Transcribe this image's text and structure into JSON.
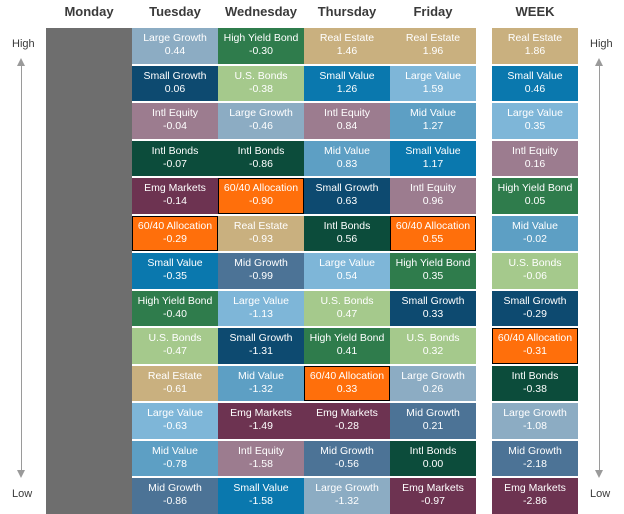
{
  "labels": {
    "high": "High",
    "low": "Low"
  },
  "colors": {
    "Large Growth": "#8cacc3",
    "Small Growth": "#0d4a70",
    "Intl Equity": "#9c7c8f",
    "Intl Bonds": "#0c4c3b",
    "Emg Markets": "#6d3351",
    "60/40 Allocation": "#ff6f0b",
    "Small Value": "#0a78ae",
    "High Yield Bond": "#2f7c4c",
    "U.S. Bonds": "#a5c98c",
    "Real Estate": "#c9b07f",
    "Large Value": "#7eb6d8",
    "Mid Value": "#5d9fc4",
    "Mid Growth": "#4c7396",
    "monday": "#6e6e6e",
    "outline": "#000000"
  },
  "chart_data": {
    "type": "table",
    "columns": [
      {
        "name": "Monday",
        "cells": []
      },
      {
        "name": "Tuesday",
        "cells": [
          {
            "asset": "Large Growth",
            "value": "0.44"
          },
          {
            "asset": "Small Growth",
            "value": "0.06"
          },
          {
            "asset": "Intl Equity",
            "value": "-0.04"
          },
          {
            "asset": "Intl Bonds",
            "value": "-0.07"
          },
          {
            "asset": "Emg Markets",
            "value": "-0.14"
          },
          {
            "asset": "60/40 Allocation",
            "value": "-0.29"
          },
          {
            "asset": "Small Value",
            "value": "-0.35"
          },
          {
            "asset": "High Yield Bond",
            "value": "-0.40"
          },
          {
            "asset": "U.S. Bonds",
            "value": "-0.47"
          },
          {
            "asset": "Real Estate",
            "value": "-0.61"
          },
          {
            "asset": "Large Value",
            "value": "-0.63"
          },
          {
            "asset": "Mid Value",
            "value": "-0.78"
          },
          {
            "asset": "Mid Growth",
            "value": "-0.86"
          }
        ]
      },
      {
        "name": "Wednesday",
        "cells": [
          {
            "asset": "High Yield Bond",
            "value": "-0.30"
          },
          {
            "asset": "U.S. Bonds",
            "value": "-0.38"
          },
          {
            "asset": "Large Growth",
            "value": "-0.46"
          },
          {
            "asset": "Intl Bonds",
            "value": "-0.86"
          },
          {
            "asset": "60/40 Allocation",
            "value": "-0.90"
          },
          {
            "asset": "Real Estate",
            "value": "-0.93"
          },
          {
            "asset": "Mid Growth",
            "value": "-0.99"
          },
          {
            "asset": "Large Value",
            "value": "-1.13"
          },
          {
            "asset": "Small Growth",
            "value": "-1.31"
          },
          {
            "asset": "Mid Value",
            "value": "-1.32"
          },
          {
            "asset": "Emg Markets",
            "value": "-1.49"
          },
          {
            "asset": "Intl Equity",
            "value": "-1.58"
          },
          {
            "asset": "Small Value",
            "value": "-1.58"
          }
        ]
      },
      {
        "name": "Thursday",
        "cells": [
          {
            "asset": "Real Estate",
            "value": "1.46"
          },
          {
            "asset": "Small Value",
            "value": "1.26"
          },
          {
            "asset": "Intl Equity",
            "value": "0.84"
          },
          {
            "asset": "Mid Value",
            "value": "0.83"
          },
          {
            "asset": "Small Growth",
            "value": "0.63"
          },
          {
            "asset": "Intl Bonds",
            "value": "0.56"
          },
          {
            "asset": "Large Value",
            "value": "0.54"
          },
          {
            "asset": "U.S. Bonds",
            "value": "0.47"
          },
          {
            "asset": "High Yield Bond",
            "value": "0.41"
          },
          {
            "asset": "60/40 Allocation",
            "value": "0.33"
          },
          {
            "asset": "Emg Markets",
            "value": "-0.28"
          },
          {
            "asset": "Mid Growth",
            "value": "-0.56"
          },
          {
            "asset": "Large Growth",
            "value": "-1.32"
          }
        ]
      },
      {
        "name": "Friday",
        "cells": [
          {
            "asset": "Real Estate",
            "value": "1.96"
          },
          {
            "asset": "Large Value",
            "value": "1.59"
          },
          {
            "asset": "Mid Value",
            "value": "1.27"
          },
          {
            "asset": "Small Value",
            "value": "1.17"
          },
          {
            "asset": "Intl Equity",
            "value": "0.96"
          },
          {
            "asset": "60/40 Allocation",
            "value": "0.55"
          },
          {
            "asset": "High Yield Bond",
            "value": "0.35"
          },
          {
            "asset": "Small Growth",
            "value": "0.33"
          },
          {
            "asset": "U.S. Bonds",
            "value": "0.32"
          },
          {
            "asset": "Large Growth",
            "value": "0.26"
          },
          {
            "asset": "Mid Growth",
            "value": "0.21"
          },
          {
            "asset": "Intl Bonds",
            "value": "0.00"
          },
          {
            "asset": "Emg Markets",
            "value": "-0.97"
          }
        ]
      },
      {
        "name": "WEEK",
        "cells": [
          {
            "asset": "Real Estate",
            "value": "1.86"
          },
          {
            "asset": "Small Value",
            "value": "0.46"
          },
          {
            "asset": "Large Value",
            "value": "0.35"
          },
          {
            "asset": "Intl Equity",
            "value": "0.16"
          },
          {
            "asset": "High Yield Bond",
            "value": "0.05"
          },
          {
            "asset": "Mid Value",
            "value": "-0.02"
          },
          {
            "asset": "U.S. Bonds",
            "value": "-0.06"
          },
          {
            "asset": "Small Growth",
            "value": "-0.29"
          },
          {
            "asset": "60/40 Allocation",
            "value": "-0.31"
          },
          {
            "asset": "Intl Bonds",
            "value": "-0.38"
          },
          {
            "asset": "Large Growth",
            "value": "-1.08"
          },
          {
            "asset": "Mid Growth",
            "value": "-2.18"
          },
          {
            "asset": "Emg Markets",
            "value": "-2.86"
          }
        ]
      }
    ]
  }
}
